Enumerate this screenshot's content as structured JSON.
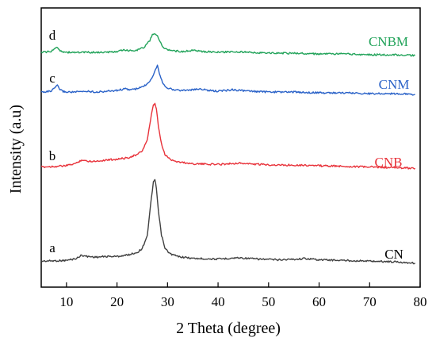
{
  "chart_data": {
    "type": "line",
    "title": "",
    "xlabel": "2 Theta (degree)",
    "ylabel": "Intensity (a.u)",
    "xlim": [
      5,
      80
    ],
    "xticks": [
      10,
      20,
      30,
      40,
      50,
      60,
      70,
      80
    ],
    "y_tick_labels": "none",
    "grid": false,
    "legend": "none (series labelled inline at right end)",
    "series": [
      {
        "name": "CN",
        "letter": "a",
        "color": "#404040",
        "baseline": 0,
        "x": [
          5,
          8,
          10,
          12,
          13,
          14,
          16,
          18,
          20,
          22,
          24,
          25,
          26,
          26.8,
          27.2,
          27.5,
          27.8,
          28.2,
          28.8,
          29.5,
          30.5,
          32,
          35,
          40,
          44,
          48,
          52,
          56,
          57,
          60,
          65,
          70,
          75,
          79
        ],
        "y": [
          1,
          1.5,
          2,
          5,
          10,
          8,
          7,
          8,
          8,
          10,
          14,
          20,
          40,
          95,
          120,
          122,
          110,
          75,
          40,
          20,
          12,
          8,
          5,
          4,
          6,
          4,
          3,
          4,
          5,
          3,
          2,
          1,
          0,
          -2
        ]
      },
      {
        "name": "CNB",
        "letter": "b",
        "color": "#e8323a",
        "baseline": 0,
        "x": [
          5,
          8,
          10,
          12,
          13,
          14,
          16,
          18,
          20,
          22,
          24,
          25,
          26,
          26.8,
          27.2,
          27.5,
          27.8,
          28.2,
          28.8,
          29.5,
          30.5,
          32,
          35,
          40,
          44,
          48,
          52,
          56,
          60,
          65,
          70,
          75,
          79
        ],
        "y": [
          3,
          4,
          5,
          9,
          14,
          12,
          12,
          14,
          15,
          17,
          22,
          28,
          45,
          82,
          98,
          100,
          92,
          65,
          38,
          22,
          15,
          11,
          8,
          7,
          9,
          7,
          6,
          6,
          5,
          4,
          3,
          2,
          1
        ]
      },
      {
        "name": "CNM",
        "letter": "c",
        "color": "#2a62c8",
        "baseline": 0,
        "x": [
          5,
          7,
          7.8,
          8.2,
          8.6,
          9.2,
          10,
          12,
          14,
          16,
          18,
          20,
          21.5,
          22.5,
          24,
          25.5,
          26.5,
          27.2,
          27.6,
          28,
          28.4,
          29,
          29.8,
          31,
          33,
          35.5,
          36.5,
          38,
          40,
          43,
          46,
          50,
          55,
          60,
          65,
          70,
          75,
          79
        ],
        "y": [
          2,
          3,
          8,
          10,
          6,
          3,
          2,
          2,
          3,
          2,
          3,
          4,
          6,
          5,
          6,
          10,
          16,
          24,
          30,
          36,
          26,
          14,
          8,
          5,
          4,
          5,
          6,
          4,
          3,
          5,
          3,
          2,
          2,
          1,
          1,
          0,
          0,
          -1
        ]
      },
      {
        "name": "CNBM",
        "letter": "d",
        "color": "#22a35a",
        "baseline": 0,
        "x": [
          5,
          7,
          7.8,
          8.2,
          8.6,
          9.2,
          10,
          12,
          14,
          16,
          18,
          20,
          21.5,
          22.5,
          24,
          25.5,
          26.5,
          27,
          27.5,
          28,
          28.4,
          29,
          29.8,
          31,
          33,
          35.5,
          36.5,
          38,
          40,
          43,
          46,
          50,
          55,
          60,
          65,
          70,
          75,
          79
        ],
        "y": [
          3,
          4,
          8,
          10,
          6,
          4,
          3,
          3,
          3,
          3,
          3,
          4,
          6,
          5,
          6,
          10,
          18,
          25,
          27,
          24,
          18,
          10,
          7,
          5,
          4,
          6,
          4,
          4,
          3,
          4,
          3,
          2,
          2,
          1,
          1,
          0,
          0,
          -1
        ]
      }
    ]
  }
}
